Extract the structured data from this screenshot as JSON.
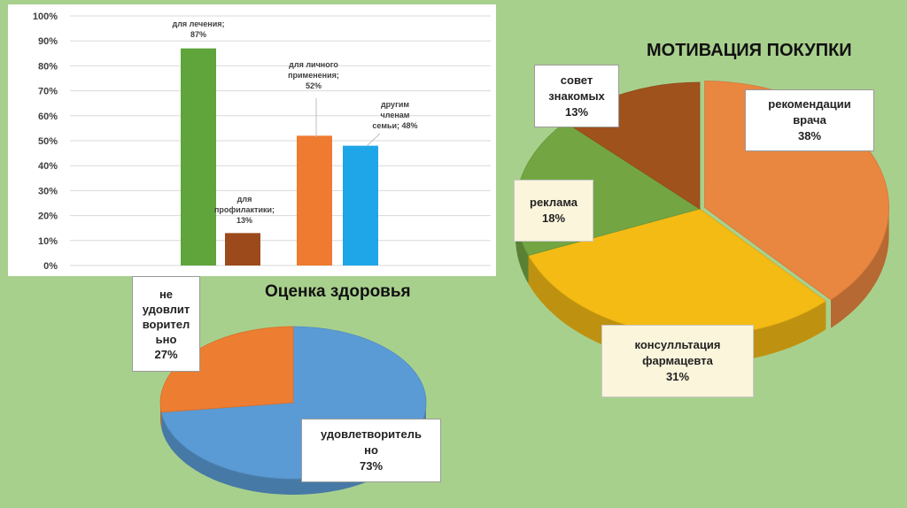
{
  "chart_data": [
    {
      "type": "bar",
      "ylim": [
        0,
        100
      ],
      "yticks": [
        "0%",
        "10%",
        "20%",
        "30%",
        "40%",
        "50%",
        "60%",
        "70%",
        "80%",
        "90%",
        "100%"
      ],
      "grid": true,
      "bars": [
        {
          "label_lines": [
            "для лечения;",
            "87%"
          ],
          "value": 87,
          "color": "#5fa53c"
        },
        {
          "label_lines": [
            "для",
            "профилактики;",
            "13%"
          ],
          "value": 13,
          "color": "#9c4a1c"
        },
        {
          "label_lines": [
            "для личного",
            "применения;",
            "52%"
          ],
          "value": 52,
          "color": "#ee7b30"
        },
        {
          "label_lines": [
            "другим",
            "членам",
            "семьи; 48%"
          ],
          "value": 48,
          "color": "#1fa6e8"
        }
      ]
    },
    {
      "type": "pie",
      "title": "МОТИВАЦИЯ ПОКУПКИ",
      "slices": [
        {
          "label_lines": [
            "рекомендации",
            "врача",
            "38%"
          ],
          "value": 38,
          "color": "#e98640"
        },
        {
          "label_lines": [
            "консулльтация",
            "фармацевта",
            "31%"
          ],
          "value": 31,
          "color": "#f4bb14"
        },
        {
          "label_lines": [
            "реклама",
            "18%"
          ],
          "value": 18,
          "color": "#73a642"
        },
        {
          "label_lines": [
            "совет",
            "знакомых",
            "13%"
          ],
          "value": 13,
          "color": "#a0521d"
        }
      ]
    },
    {
      "type": "pie",
      "title": "Оценка здоровья",
      "slices": [
        {
          "label_lines": [
            "удовлетворитель",
            "но",
            "73%"
          ],
          "value": 73,
          "color": "#5b9bd5"
        },
        {
          "label_lines": [
            "не",
            "удовлит",
            "ворител",
            "ьно",
            "27%"
          ],
          "value": 27,
          "color": "#ed7d31"
        }
      ]
    }
  ]
}
